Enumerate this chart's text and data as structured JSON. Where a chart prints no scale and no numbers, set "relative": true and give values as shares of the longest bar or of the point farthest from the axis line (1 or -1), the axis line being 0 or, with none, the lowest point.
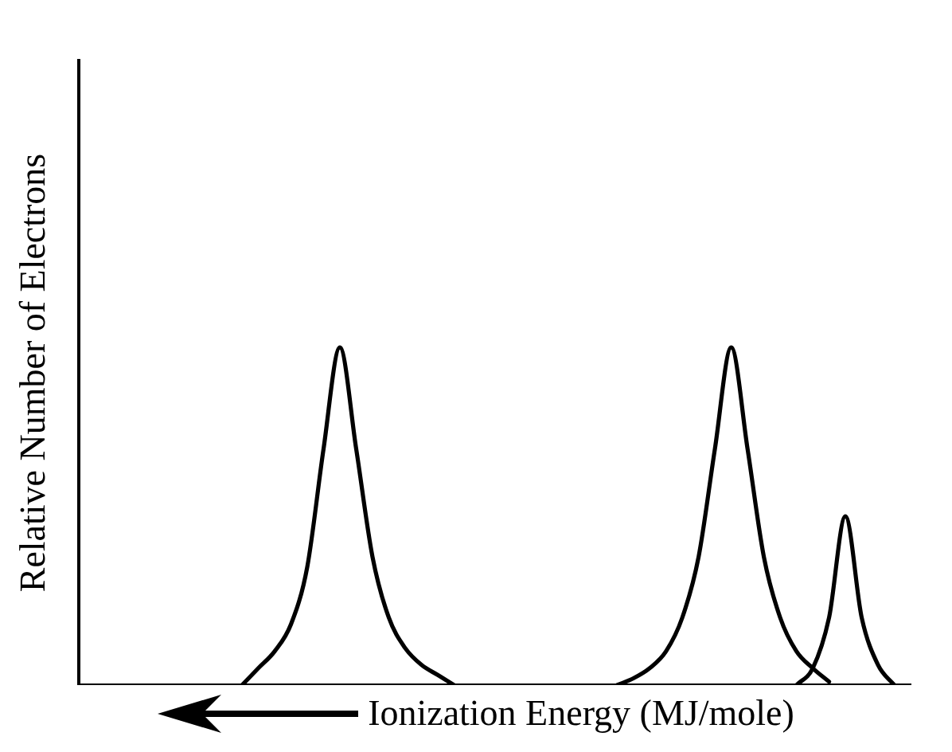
{
  "chart_data": {
    "type": "line",
    "relative": true,
    "ylabel": "Relative Number of Electrons",
    "xlabel": "Ionization Energy (MJ/mole)",
    "categories": [
      null,
      null,
      null,
      null,
      null,
      null,
      null,
      null,
      null,
      null,
      null,
      null,
      null,
      null,
      null,
      null,
      null,
      null,
      null,
      null,
      null,
      null,
      null,
      null,
      null,
      null,
      null,
      null,
      null,
      null,
      null,
      null,
      null,
      null,
      null,
      null,
      null,
      null,
      null,
      null,
      null,
      null,
      null,
      null,
      null,
      null,
      null,
      null,
      null,
      null,
      null,
      null
    ],
    "series": [
      {
        "color": "#000000",
        "values": [
          null,
          null,
          null,
          null,
          null,
          null,
          null,
          null,
          null,
          null,
          0,
          0.05,
          0.1,
          0.18,
          0.35,
          0.7,
          1,
          0.7,
          0.38,
          0.2,
          0.11,
          0.06,
          0.03,
          0,
          null,
          null,
          null,
          null,
          null,
          null,
          null,
          null,
          null,
          null,
          null,
          null,
          null,
          null,
          null,
          null,
          null,
          null,
          null,
          null,
          null,
          null,
          null,
          null,
          null,
          null,
          null,
          null
        ]
      },
      {
        "color": "#000000",
        "values": [
          null,
          null,
          null,
          null,
          null,
          null,
          null,
          null,
          null,
          null,
          null,
          null,
          null,
          null,
          null,
          null,
          null,
          null,
          null,
          null,
          null,
          null,
          null,
          null,
          null,
          null,
          null,
          null,
          null,
          null,
          null,
          null,
          null,
          0,
          0.02,
          0.05,
          0.1,
          0.2,
          0.38,
          0.7,
          1,
          0.7,
          0.38,
          0.2,
          0.1,
          0.05,
          0.01,
          null,
          null,
          null,
          null,
          null
        ]
      },
      {
        "color": "#000000",
        "values": [
          null,
          null,
          null,
          null,
          null,
          null,
          null,
          null,
          null,
          null,
          null,
          null,
          null,
          null,
          null,
          null,
          null,
          null,
          null,
          null,
          null,
          null,
          null,
          null,
          null,
          null,
          null,
          null,
          null,
          null,
          null,
          null,
          null,
          null,
          null,
          null,
          null,
          null,
          null,
          null,
          null,
          null,
          null,
          null,
          0,
          0.05,
          0.2,
          0.5,
          0.2,
          0.06,
          0,
          null
        ]
      }
    ],
    "grid": false,
    "legend": false,
    "tick_labels": false,
    "marker": "none",
    "line_style": "solid"
  }
}
